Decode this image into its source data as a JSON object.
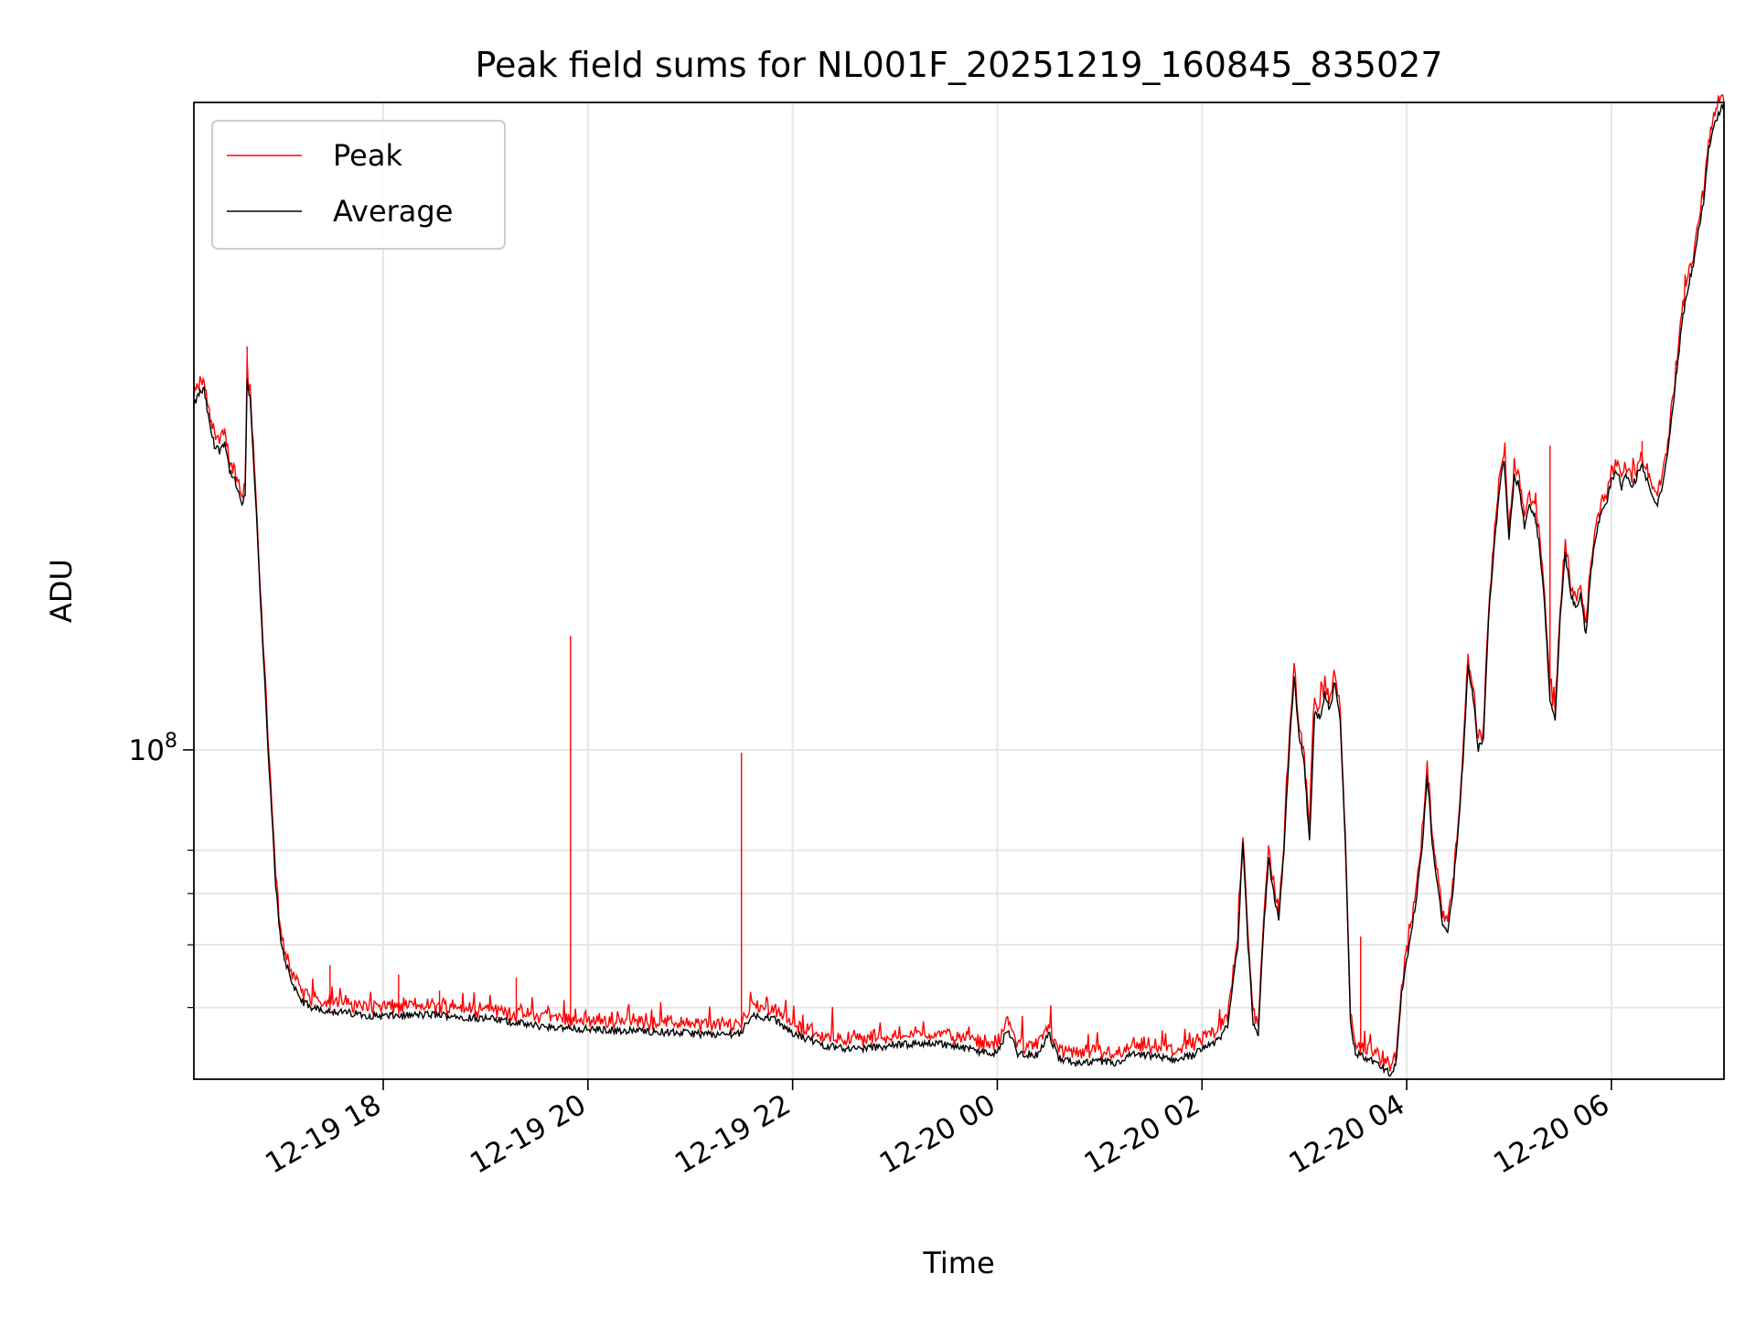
{
  "chart_data": {
    "type": "line",
    "title": "Peak field sums for NL001F_20251219_160845_835027",
    "xlabel": "Time",
    "ylabel": "ADU",
    "yscale": "log",
    "ylim": [
      31000000,
      1000000000
    ],
    "xlim_hours": [
      -1.85,
      13.1
    ],
    "grid": true,
    "legend_position": "upper-left",
    "x_ticks": [
      {
        "hour": 0,
        "label": "12-19 18"
      },
      {
        "hour": 2,
        "label": "12-19 20"
      },
      {
        "hour": 4,
        "label": "12-19 22"
      },
      {
        "hour": 6,
        "label": "12-20 00"
      },
      {
        "hour": 8,
        "label": "12-20 02"
      },
      {
        "hour": 10,
        "label": "12-20 04"
      },
      {
        "hour": 12,
        "label": "12-20 06"
      }
    ],
    "y_major_ticks": [
      {
        "value": 100000000,
        "base": "10",
        "exponent": "8"
      }
    ],
    "y_minor_ticks": [
      40000000,
      50000000,
      60000000,
      70000000
    ],
    "series": [
      {
        "name": "Peak",
        "color": "#ff0000"
      },
      {
        "name": "Average",
        "color": "#000000"
      }
    ],
    "average_points": [
      [
        -1.85,
        340000000
      ],
      [
        -1.8,
        355000000
      ],
      [
        -1.75,
        360000000
      ],
      [
        -1.7,
        320000000
      ],
      [
        -1.65,
        295000000
      ],
      [
        -1.6,
        290000000
      ],
      [
        -1.55,
        300000000
      ],
      [
        -1.5,
        270000000
      ],
      [
        -1.45,
        260000000
      ],
      [
        -1.42,
        250000000
      ],
      [
        -1.38,
        240000000
      ],
      [
        -1.35,
        245000000
      ],
      [
        -1.33,
        370000000
      ],
      [
        -1.3,
        350000000
      ],
      [
        -1.25,
        250000000
      ],
      [
        -1.2,
        170000000
      ],
      [
        -1.15,
        120000000
      ],
      [
        -1.1,
        85000000
      ],
      [
        -1.05,
        62000000
      ],
      [
        -1.0,
        50000000
      ],
      [
        -0.9,
        44000000
      ],
      [
        -0.8,
        41000000
      ],
      [
        -0.7,
        40000000
      ],
      [
        -0.5,
        39500000
      ],
      [
        -0.2,
        39000000
      ],
      [
        0.0,
        38800000
      ],
      [
        0.5,
        39000000
      ],
      [
        1.0,
        38500000
      ],
      [
        1.5,
        37500000
      ],
      [
        2.0,
        37000000
      ],
      [
        2.5,
        36800000
      ],
      [
        3.0,
        36500000
      ],
      [
        3.3,
        36300000
      ],
      [
        3.5,
        36600000
      ],
      [
        3.6,
        39000000
      ],
      [
        3.8,
        38500000
      ],
      [
        4.0,
        36500000
      ],
      [
        4.3,
        35000000
      ],
      [
        4.6,
        34500000
      ],
      [
        5.0,
        35000000
      ],
      [
        5.4,
        35300000
      ],
      [
        5.8,
        34300000
      ],
      [
        6.0,
        34000000
      ],
      [
        6.1,
        37000000
      ],
      [
        6.2,
        34000000
      ],
      [
        6.4,
        33800000
      ],
      [
        6.5,
        36500000
      ],
      [
        6.6,
        33400000
      ],
      [
        6.8,
        32700000
      ],
      [
        7.0,
        33000000
      ],
      [
        7.2,
        32800000
      ],
      [
        7.3,
        33800000
      ],
      [
        7.5,
        33700000
      ],
      [
        7.7,
        33200000
      ],
      [
        7.9,
        33700000
      ],
      [
        8.0,
        34800000
      ],
      [
        8.15,
        35400000
      ],
      [
        8.25,
        37500000
      ],
      [
        8.35,
        50000000
      ],
      [
        8.4,
        73000000
      ],
      [
        8.45,
        50000000
      ],
      [
        8.5,
        38000000
      ],
      [
        8.55,
        36000000
      ],
      [
        8.6,
        52000000
      ],
      [
        8.65,
        68000000
      ],
      [
        8.7,
        60000000
      ],
      [
        8.75,
        55000000
      ],
      [
        8.8,
        70000000
      ],
      [
        8.85,
        98000000
      ],
      [
        8.9,
        130000000
      ],
      [
        8.95,
        105000000
      ],
      [
        9.0,
        95000000
      ],
      [
        9.05,
        72000000
      ],
      [
        9.1,
        115000000
      ],
      [
        9.15,
        112000000
      ],
      [
        9.2,
        122000000
      ],
      [
        9.25,
        115000000
      ],
      [
        9.3,
        128000000
      ],
      [
        9.35,
        110000000
      ],
      [
        9.4,
        72000000
      ],
      [
        9.45,
        38000000
      ],
      [
        9.5,
        34000000
      ],
      [
        9.6,
        33400000
      ],
      [
        9.7,
        32800000
      ],
      [
        9.8,
        32000000
      ],
      [
        9.85,
        31500000
      ],
      [
        9.9,
        33000000
      ],
      [
        9.95,
        42000000
      ],
      [
        10.0,
        47000000
      ],
      [
        10.1,
        60000000
      ],
      [
        10.15,
        70000000
      ],
      [
        10.2,
        92000000
      ],
      [
        10.25,
        72000000
      ],
      [
        10.3,
        62000000
      ],
      [
        10.35,
        54000000
      ],
      [
        10.4,
        52000000
      ],
      [
        10.45,
        60000000
      ],
      [
        10.5,
        75000000
      ],
      [
        10.55,
        95000000
      ],
      [
        10.6,
        135000000
      ],
      [
        10.65,
        120000000
      ],
      [
        10.7,
        100000000
      ],
      [
        10.75,
        105000000
      ],
      [
        10.8,
        160000000
      ],
      [
        10.85,
        200000000
      ],
      [
        10.9,
        250000000
      ],
      [
        10.95,
        280000000
      ],
      [
        11.0,
        210000000
      ],
      [
        11.05,
        265000000
      ],
      [
        11.1,
        255000000
      ],
      [
        11.15,
        220000000
      ],
      [
        11.2,
        240000000
      ],
      [
        11.25,
        230000000
      ],
      [
        11.3,
        205000000
      ],
      [
        11.35,
        165000000
      ],
      [
        11.4,
        120000000
      ],
      [
        11.45,
        112000000
      ],
      [
        11.5,
        160000000
      ],
      [
        11.55,
        200000000
      ],
      [
        11.6,
        175000000
      ],
      [
        11.65,
        165000000
      ],
      [
        11.7,
        175000000
      ],
      [
        11.75,
        150000000
      ],
      [
        11.8,
        190000000
      ],
      [
        11.85,
        215000000
      ],
      [
        11.9,
        235000000
      ],
      [
        11.95,
        240000000
      ],
      [
        12.0,
        260000000
      ],
      [
        12.05,
        270000000
      ],
      [
        12.1,
        255000000
      ],
      [
        12.15,
        265000000
      ],
      [
        12.2,
        255000000
      ],
      [
        12.3,
        275000000
      ],
      [
        12.35,
        260000000
      ],
      [
        12.4,
        245000000
      ],
      [
        12.45,
        240000000
      ],
      [
        12.5,
        255000000
      ],
      [
        12.55,
        290000000
      ],
      [
        12.6,
        340000000
      ],
      [
        12.65,
        400000000
      ],
      [
        12.7,
        470000000
      ],
      [
        12.75,
        520000000
      ],
      [
        12.8,
        560000000
      ],
      [
        12.85,
        640000000
      ],
      [
        12.9,
        700000000
      ],
      [
        12.95,
        850000000
      ],
      [
        13.0,
        920000000
      ],
      [
        13.1,
        1000000000
      ]
    ],
    "peak_spikes": [
      {
        "hour": -1.33,
        "value": 420000000
      },
      {
        "hour": -0.52,
        "value": 46500000
      },
      {
        "hour": 0.15,
        "value": 45000000
      },
      {
        "hour": 0.55,
        "value": 42500000
      },
      {
        "hour": 1.3,
        "value": 44500000
      },
      {
        "hour": 1.83,
        "value": 150000000
      },
      {
        "hour": 3.5,
        "value": 99000000
      },
      {
        "hour": 9.55,
        "value": 51500000
      },
      {
        "hour": 11.4,
        "value": 295000000
      },
      {
        "hour": 12.3,
        "value": 300000000
      }
    ]
  }
}
